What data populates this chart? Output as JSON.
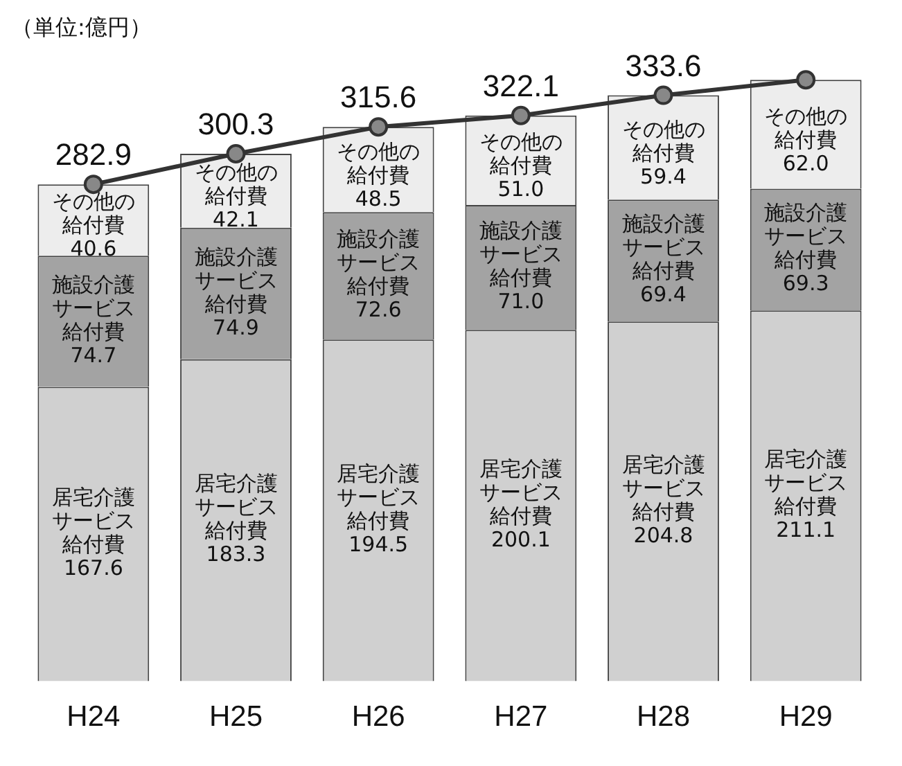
{
  "chart_data": {
    "type": "bar",
    "stacked": true,
    "categories": [
      "H24",
      "H25",
      "H26",
      "H27",
      "H28",
      "H29"
    ],
    "series": [
      {
        "name": "居宅介護サービス給付費",
        "color": "#d0d0d0",
        "values": [
          167.6,
          183.3,
          194.5,
          200.1,
          204.8,
          211.1
        ],
        "value_labels": [
          "167.6",
          "183.3",
          "194.5",
          "200.1",
          "204.8",
          "211.1"
        ]
      },
      {
        "name": "施設介護サービス給付費",
        "color": "#a3a3a3",
        "values": [
          74.7,
          74.9,
          72.6,
          71.0,
          69.4,
          69.3
        ],
        "value_labels": [
          "74.7",
          "74.9",
          "72.6",
          "71.0",
          "69.4",
          "69.3"
        ]
      },
      {
        "name": "その他の給付費",
        "color": "#ededed",
        "values": [
          40.6,
          42.1,
          48.5,
          51.0,
          59.4,
          62.0
        ],
        "value_labels": [
          "40.6",
          "42.1",
          "48.5",
          "51.0",
          "59.4",
          "62.0"
        ]
      },
      {
        "type": "line",
        "color": "#333333",
        "values": [
          282.9,
          300.3,
          315.6,
          322.1,
          333.6,
          342.4
        ],
        "value_labels": [
          "282.9",
          "300.3",
          "315.6",
          "322.1",
          "333.6",
          null
        ]
      }
    ],
    "marker": "circle",
    "legend": false,
    "grid": false,
    "tick_labels": "x",
    "annotations": [
      "（単位:億円）"
    ]
  }
}
